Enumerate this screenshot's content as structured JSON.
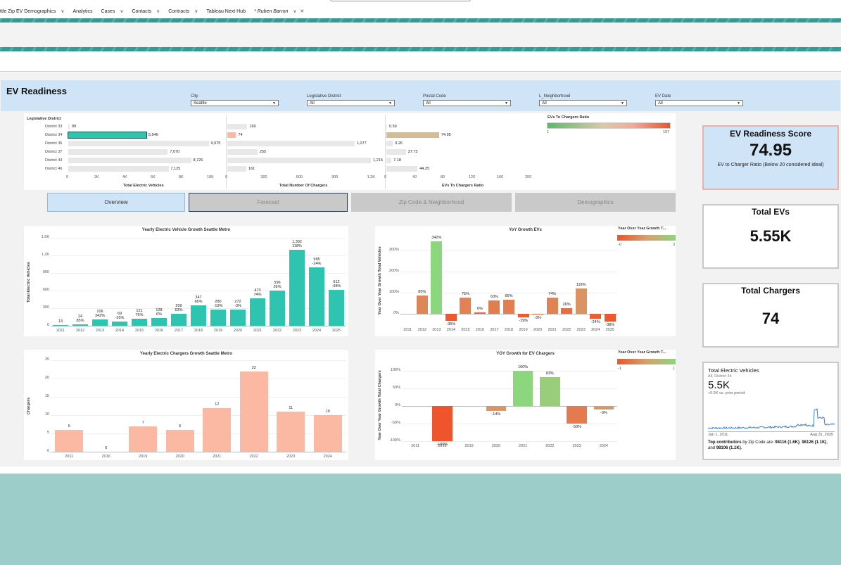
{
  "nav": {
    "items": [
      {
        "label": "ttle Zip EV Demographics"
      },
      {
        "label": "Analytics"
      },
      {
        "label": "Cases"
      },
      {
        "label": "Contacts"
      },
      {
        "label": "Contracts"
      },
      {
        "label": "Tableau Next Hub"
      },
      {
        "label": "* Ruben Barron"
      }
    ]
  },
  "dashboard": {
    "title": "EV Readiness"
  },
  "filters": [
    {
      "label": "City",
      "value": "Seattle"
    },
    {
      "label": "Legislative District",
      "value": "All"
    },
    {
      "label": "Postal Code",
      "value": "All"
    },
    {
      "label": "L_Neighborhood",
      "value": "All"
    },
    {
      "label": "EV Date",
      "value": "All"
    }
  ],
  "district_table": {
    "header": "Legislative District",
    "districts": [
      "District 33",
      "District 34",
      "District 36",
      "District 37",
      "District 43",
      "District 46"
    ],
    "evs": [
      99,
      5546,
      9975,
      7070,
      8726,
      7125
    ],
    "evs_labels": [
      "99",
      "5,546",
      "9,975",
      "7,070",
      "8,726",
      "7,125"
    ],
    "chargers": [
      169,
      74,
      1077,
      255,
      1215,
      161
    ],
    "chargers_labels": [
      "169",
      "74",
      "1,077",
      "255",
      "1,215",
      "161"
    ],
    "ratio": [
      0.59,
      74.95,
      9.26,
      27.73,
      7.18,
      44.25
    ],
    "ratio_labels": [
      "0.59",
      "74.95",
      "9.26",
      "27.73",
      "7.18",
      "44.25"
    ],
    "selected_index": 1,
    "evs_axis": [
      "0",
      "2K",
      "4K",
      "6K",
      "8K",
      "10K"
    ],
    "evs_axis_title": "Total Electric Vehicles",
    "chargers_axis": [
      "0",
      "300",
      "600",
      "900",
      "1.2K"
    ],
    "chargers_axis_title": "Total Number Of Chargers",
    "ratio_axis": [
      "0",
      "40",
      "80",
      "120",
      "160",
      "200"
    ],
    "ratio_axis_title": "EVs To Chargers Ratio",
    "legend_title": "EVs To Chargers Ratio",
    "legend_min": "1",
    "legend_max": "197"
  },
  "tabs": [
    {
      "label": "Overview",
      "active": true
    },
    {
      "label": "Forecast",
      "active": false
    },
    {
      "label": "Zip Code & Neighborhood",
      "active": false
    },
    {
      "label": "Demographics",
      "active": false
    }
  ],
  "cards": {
    "score": {
      "title": "EV Readiness Score",
      "value": "74.95",
      "subtitle": "EV to Charger Ratio (Below 20 considered ideal)"
    },
    "evs": {
      "title": "Total EVs",
      "value": "5.55K"
    },
    "chargers": {
      "title": "Total Chargers",
      "value": "74"
    },
    "metric": {
      "title": "Total Electric Vehicles",
      "filter": "All, District 34",
      "value": "5.5K",
      "change": "+5.5K vs. prior period",
      "start": "Jan 1, 2011",
      "end": "Aug 31, 2025",
      "insight_prefix": "Top contributors",
      "insight_rest": " by Zip Code are: ",
      "insight_items": [
        "98116 (1.6K)",
        ", ",
        "98126 (1.1K)",
        ", and ",
        "98106 (1.1K)",
        "."
      ]
    }
  },
  "chart_data": [
    {
      "type": "bar",
      "title": "Yearly Electric Vehicle Growth Seattle Metro",
      "ylabel": "Total Electric Vehicles",
      "ylim": [
        0,
        1500
      ],
      "yticks": [
        "0",
        "300",
        "600",
        "900",
        "1.2K",
        "1.5K"
      ],
      "categories": [
        "2011",
        "2012",
        "2013",
        "2014",
        "2015",
        "2016",
        "2017",
        "2018",
        "2019",
        "2020",
        "2021",
        "2022",
        "2023",
        "2024",
        "2025"
      ],
      "values": [
        13,
        24,
        106,
        69,
        121,
        128,
        209,
        347,
        280,
        272,
        473,
        596,
        1302,
        995,
        612
      ],
      "value_labels": [
        "13",
        "24",
        "106",
        "69",
        "121",
        "128",
        "209",
        "347",
        "280",
        "272",
        "473",
        "596",
        "1,302",
        "995",
        "612"
      ],
      "growth_labels": [
        "",
        "85%",
        "342%",
        "-35%",
        "75%",
        "6%",
        "63%",
        "66%",
        "-19%",
        "-3%",
        "74%",
        "26%",
        "118%",
        "-24%",
        "-38%"
      ],
      "color": "#2ec4b0"
    },
    {
      "type": "bar",
      "title": "YoY Growth EVs",
      "ylabel": "Year Over Year Growth Total Vehicles",
      "ylim": [
        -0.55,
        3.7
      ],
      "yticks": [
        "0%",
        "100%",
        "200%",
        "300%"
      ],
      "categories": [
        "2011",
        "2012",
        "2013",
        "2014",
        "2015",
        "2016",
        "2017",
        "2018",
        "2019",
        "2020",
        "2021",
        "2022",
        "2023",
        "2024",
        "2025"
      ],
      "values": [
        null,
        0.85,
        3.42,
        -0.35,
        0.75,
        0.06,
        0.63,
        0.66,
        -0.19,
        -0.03,
        0.74,
        0.26,
        1.18,
        -0.24,
        -0.38
      ],
      "value_labels": [
        "",
        "85%",
        "342%",
        "-35%",
        "75%",
        "6%",
        "63%",
        "66%",
        "-19%",
        "-3%",
        "74%",
        "26%",
        "118%",
        "-24%",
        "-38%"
      ],
      "legend": {
        "title": "Year Over Year Growth T...",
        "min": "-0",
        "max": "3"
      }
    },
    {
      "type": "bar",
      "title": "Yearly Electric Chargers  Growth Seattle Metro",
      "ylabel": "Chargers",
      "ylim": [
        0,
        25
      ],
      "yticks": [
        "0",
        "5",
        "10",
        "15",
        "20",
        "25"
      ],
      "categories": [
        "2011",
        "2016",
        "2019",
        "2020",
        "2021",
        "2022",
        "2023",
        "2024"
      ],
      "values": [
        6,
        0,
        7,
        6,
        12,
        22,
        11,
        10
      ],
      "value_labels": [
        "6",
        "0",
        "7",
        "6",
        "12",
        "22",
        "11",
        "10"
      ],
      "color": "#fbb9a4"
    },
    {
      "type": "bar",
      "title": "YOY Growth for EV Chargers",
      "ylabel": "Year Over Year Growth Total Chargers",
      "ylim": [
        -1.0,
        1.05
      ],
      "yticks": [
        "-100%",
        "-50%",
        "0%",
        "50%",
        "100%"
      ],
      "categories": [
        "2011",
        "2016",
        "2019",
        "2020",
        "2021",
        "2022",
        "2023",
        "2024"
      ],
      "values": [
        null,
        -1.0,
        null,
        -0.14,
        1.0,
        0.83,
        -0.5,
        -0.09
      ],
      "value_labels": [
        "",
        "-100%",
        "",
        "-14%",
        "100%",
        "83%",
        "-50%",
        "-9%"
      ],
      "legend": {
        "title": "Year Over Year Growth T...",
        "min": "-1",
        "max": "1"
      }
    }
  ]
}
